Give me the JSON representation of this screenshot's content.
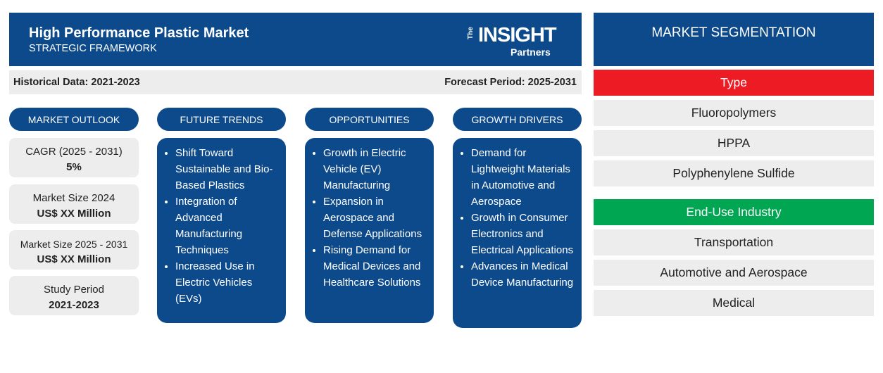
{
  "header": {
    "title": "High Performance Plastic Market",
    "subtitle": "STRATEGIC FRAMEWORK"
  },
  "logo": {
    "the": "The",
    "insight": "INSIGHT",
    "partners": "Partners"
  },
  "periods": {
    "historical": "Historical Data: 2021-2023",
    "forecast": "Forecast Period: 2025-2031"
  },
  "outlook": {
    "heading": "MARKET OUTLOOK",
    "stats": [
      {
        "label": "CAGR (2025 - 2031)",
        "value": "5%"
      },
      {
        "label": "Market Size 2024",
        "value": "US$ XX Million"
      },
      {
        "label": "Market Size 2025 - 2031",
        "value": "US$ XX Million"
      },
      {
        "label": "Study Period",
        "value": "2021-2023"
      }
    ]
  },
  "columns": [
    {
      "heading": "FUTURE TRENDS",
      "items": [
        "Shift Toward Sustainable and Bio-Based Plastics",
        "Integration of Advanced Manufacturing Techniques",
        "Increased Use in Electric Vehicles (EVs)"
      ]
    },
    {
      "heading": "OPPORTUNITIES",
      "items": [
        "Growth in Electric Vehicle (EV) Manufacturing",
        "Expansion in Aerospace and Defense Applications",
        "Rising Demand for Medical Devices and Healthcare Solutions"
      ]
    },
    {
      "heading": "GROWTH DRIVERS",
      "items": [
        "Demand for Lightweight Materials in Automotive and Aerospace",
        "Growth in Consumer Electronics and Electrical Applications",
        "Advances in Medical Device Manufacturing"
      ]
    }
  ],
  "segmentation": {
    "title": "MARKET SEGMENTATION",
    "groups": [
      {
        "name": "Type",
        "items": [
          "Fluoropolymers",
          "HPPA",
          "Polyphenylene Sulfide"
        ]
      },
      {
        "name": "End-Use Industry",
        "items": [
          "Transportation",
          "Automotive and Aerospace",
          "Medical"
        ]
      }
    ]
  }
}
